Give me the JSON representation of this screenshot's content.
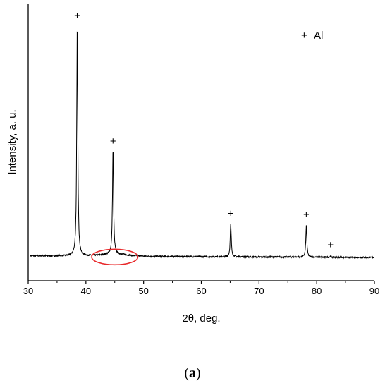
{
  "chart_data": {
    "type": "line",
    "xlabel": "2θ, deg.",
    "ylabel": "Intensity, a. u.",
    "xlim": [
      30,
      90
    ],
    "xticks": [
      30,
      40,
      50,
      60,
      70,
      80,
      90
    ],
    "y_ticks_shown": false,
    "grid": false,
    "legend": {
      "position": "top-right",
      "entries": [
        {
          "marker": "+",
          "label": "Al"
        }
      ]
    },
    "baseline_intensity": 0.045,
    "peaks": [
      {
        "x": 38.5,
        "intensity": 1.0,
        "label": "+"
      },
      {
        "x": 44.7,
        "intensity": 0.48,
        "label": "+"
      },
      {
        "x": 65.1,
        "intensity": 0.18,
        "label": "+"
      },
      {
        "x": 78.2,
        "intensity": 0.175,
        "label": "+"
      },
      {
        "x": 82.4,
        "intensity": 0.05,
        "label": "+"
      }
    ],
    "annotations": [
      {
        "type": "ellipse",
        "color": "#e8282a",
        "center_x": 45,
        "center_intensity": 0.04,
        "half_width_x": 4
      }
    ],
    "line_color": "#000000"
  },
  "caption": {
    "text": "a"
  }
}
